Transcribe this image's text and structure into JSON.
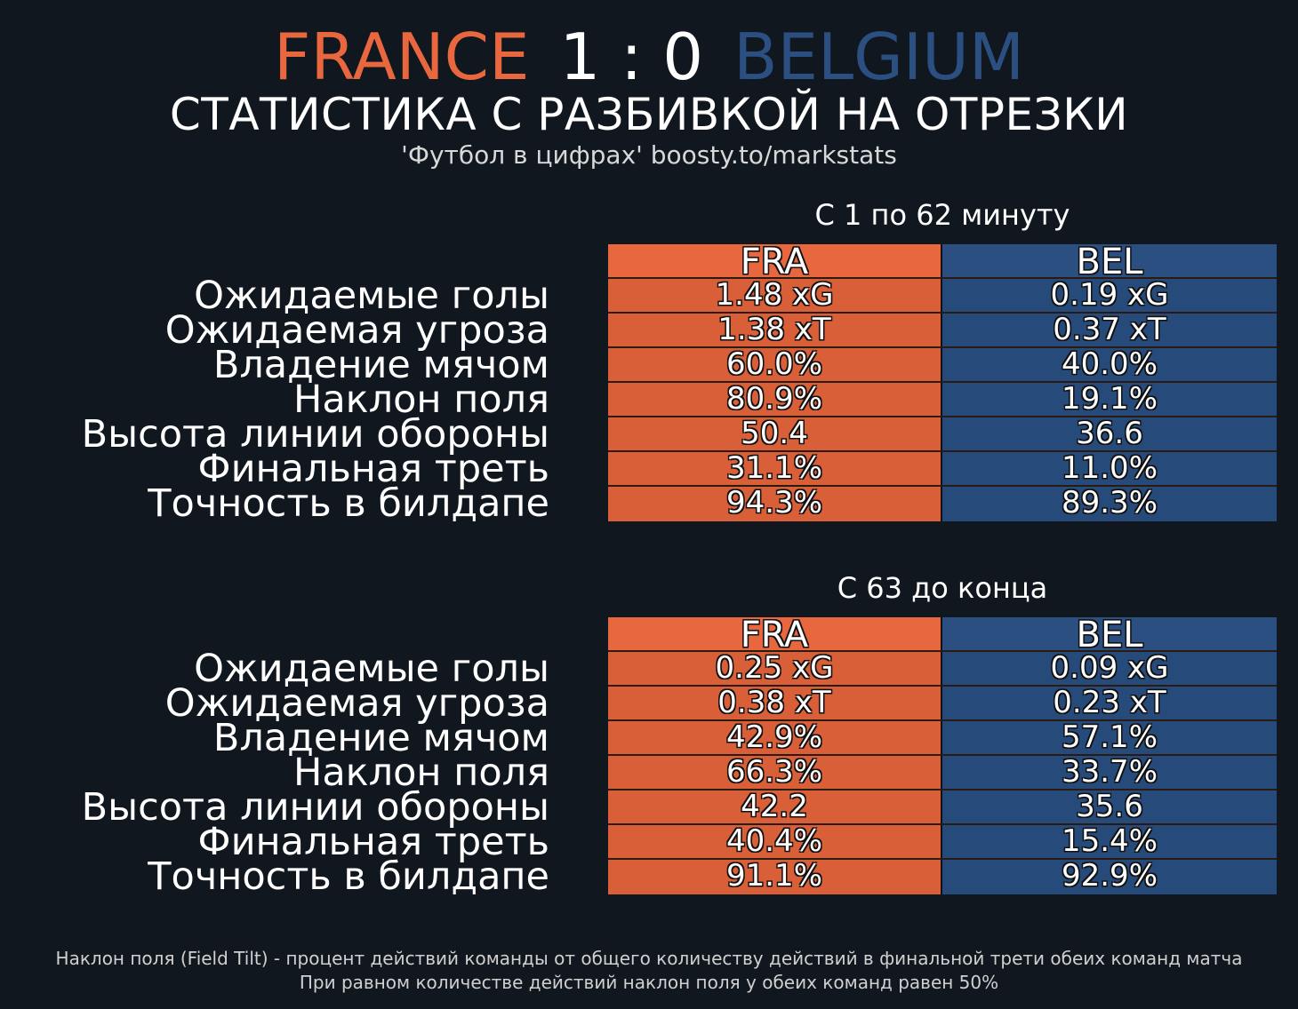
{
  "header": {
    "home_team": "FRANCE",
    "score": "1 : 0",
    "away_team": "BELGIUM",
    "subtitle": "СТАТИСТИКА С РАЗБИВКОЙ НА ОТРЕЗКИ",
    "source": "'Футбол в цифрах' boosty.to/markstats"
  },
  "colors": {
    "home": "#e9673f",
    "away": "#2c4f82",
    "background": "#10171e"
  },
  "chart_data": [
    {
      "type": "table",
      "title": "С 1 по 62 минуту",
      "columns": [
        "FRA",
        "BEL"
      ],
      "rows": [
        {
          "label": "Ожидаемые голы",
          "fra": "1.48 xG",
          "bel": "0.19 xG"
        },
        {
          "label": "Ожидаемая угроза",
          "fra": "1.38 xT",
          "bel": "0.37 xT"
        },
        {
          "label": "Владение мячом",
          "fra": "60.0%",
          "bel": "40.0%"
        },
        {
          "label": "Наклон поля",
          "fra": "80.9%",
          "bel": "19.1%"
        },
        {
          "label": "Высота линии обороны",
          "fra": "50.4",
          "bel": "36.6"
        },
        {
          "label": "Финальная треть",
          "fra": "31.1%",
          "bel": "11.0%"
        },
        {
          "label": "Точность в билдапе",
          "fra": "94.3%",
          "bel": "89.3%"
        }
      ]
    },
    {
      "type": "table",
      "title": "С 63 до конца",
      "columns": [
        "FRA",
        "BEL"
      ],
      "rows": [
        {
          "label": "Ожидаемые голы",
          "fra": "0.25 xG",
          "bel": "0.09 xG"
        },
        {
          "label": "Ожидаемая угроза",
          "fra": "0.38 xT",
          "bel": "0.23 xT"
        },
        {
          "label": "Владение мячом",
          "fra": "42.9%",
          "bel": "57.1%"
        },
        {
          "label": "Наклон поля",
          "fra": "66.3%",
          "bel": "33.7%"
        },
        {
          "label": "Высота линии обороны",
          "fra": "42.2",
          "bel": "35.6"
        },
        {
          "label": "Финальная треть",
          "fra": "40.4%",
          "bel": "15.4%"
        },
        {
          "label": "Точность в билдапе",
          "fra": "91.1%",
          "bel": "92.9%"
        }
      ]
    }
  ],
  "footnote": {
    "line1": "Наклон поля (Field Tilt) - процент действий команды от общего количеству действий в финальной трети обеих команд матча",
    "line2": "При равном количестве действий наклон поля у обеих команд равен 50%"
  }
}
